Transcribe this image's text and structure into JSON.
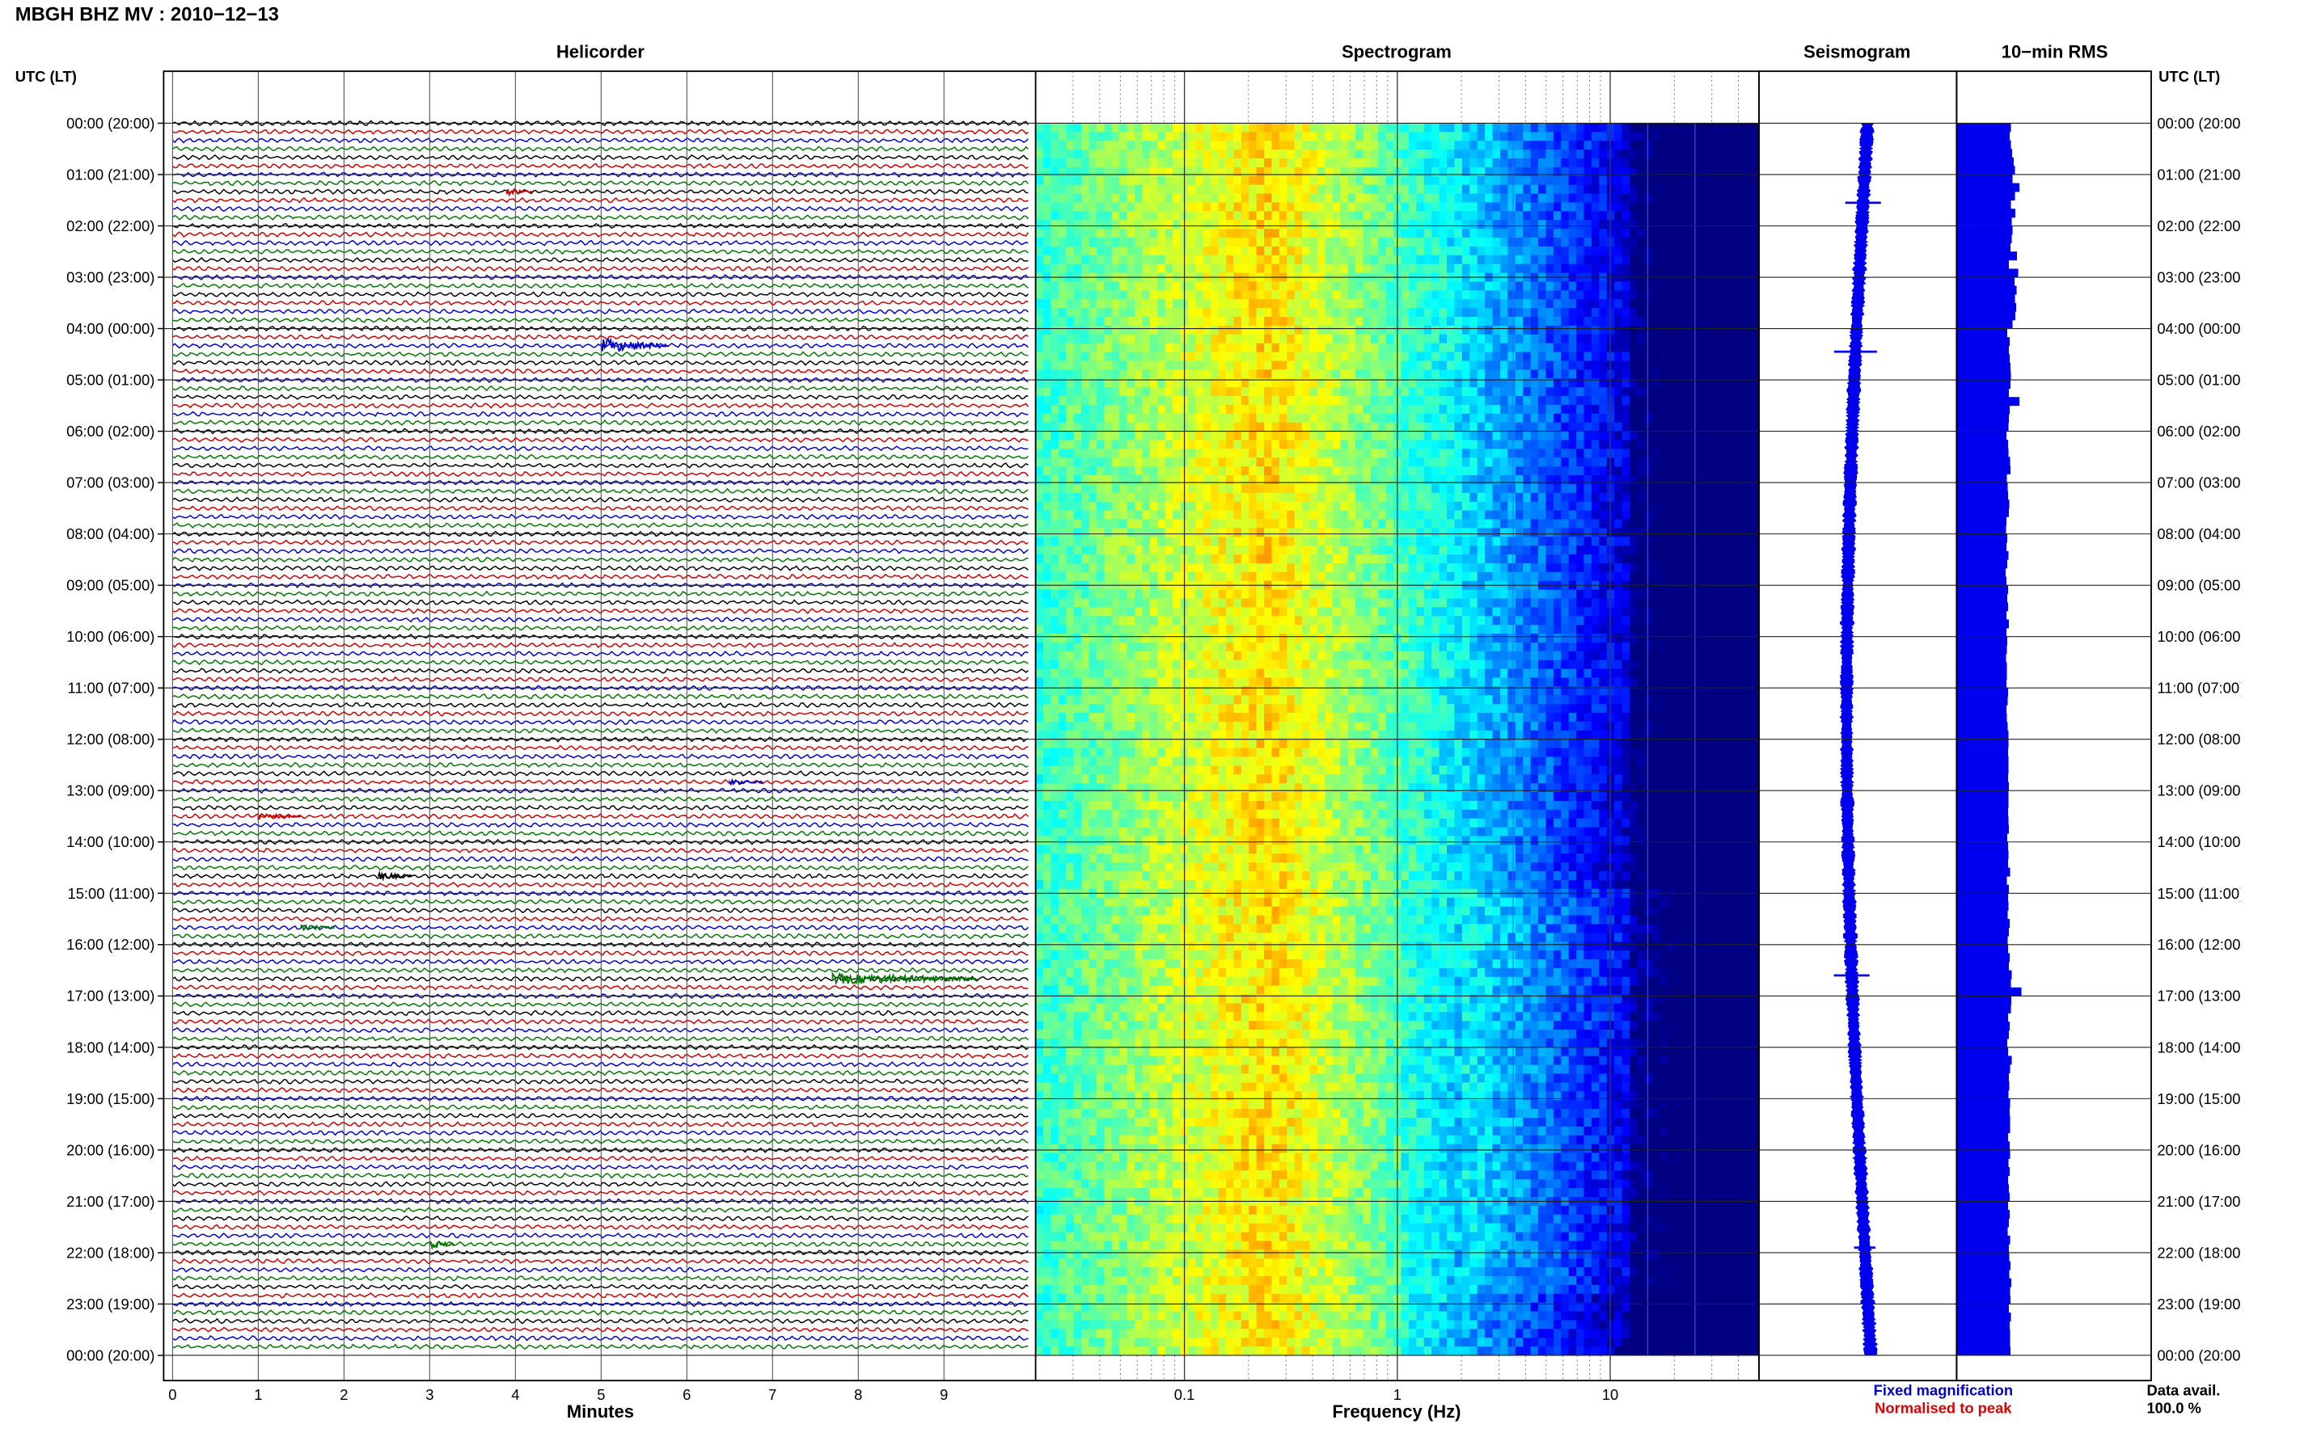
{
  "header": {
    "title": "MBGH BHZ MV : 2010−12−13"
  },
  "panels": {
    "helicorder": {
      "title": "Helicorder"
    },
    "spectrogram": {
      "title": "Spectrogram"
    },
    "seismogram": {
      "title": "Seismogram"
    },
    "rms": {
      "title": "10−min RMS"
    }
  },
  "axes": {
    "left_label": "UTC (LT)",
    "right_label": "UTC (LT)",
    "time_ticks": [
      "00:00 (20:00)",
      "01:00 (21:00)",
      "02:00 (22:00)",
      "03:00 (23:00)",
      "04:00 (00:00)",
      "05:00 (01:00)",
      "06:00 (02:00)",
      "07:00 (03:00)",
      "08:00 (04:00)",
      "09:00 (05:00)",
      "10:00 (06:00)",
      "11:00 (07:00)",
      "12:00 (08:00)",
      "13:00 (09:00)",
      "14:00 (10:00)",
      "15:00 (11:00)",
      "16:00 (12:00)",
      "17:00 (13:00)",
      "18:00 (14:00)",
      "19:00 (15:00)",
      "20:00 (16:00)",
      "21:00 (17:00)",
      "22:00 (18:00)",
      "23:00 (19:00)",
      "00:00 (20:00)"
    ],
    "minutes_ticks": [
      "0",
      "1",
      "2",
      "3",
      "4",
      "5",
      "6",
      "7",
      "8",
      "9"
    ],
    "minutes_label": "Minutes",
    "freq_ticks": [
      "0.1",
      "1",
      "10"
    ],
    "freq_label": "Frequency (Hz)"
  },
  "legend": {
    "fixed": "Fixed magnification",
    "normalised": "Normalised to peak",
    "fixed_color": "#0000cc",
    "normalised_color": "#e00000"
  },
  "data_avail": {
    "label": "Data avail.",
    "value": "100.0 %"
  },
  "colors": {
    "trace_cycle": [
      "#000000",
      "#cc0000",
      "#0000cc",
      "#007700"
    ],
    "rms_bar": "#0000ee",
    "seismogram": "#0000ee"
  },
  "chart_data": [
    {
      "type": "line",
      "name": "helicorder",
      "x_unit": "minutes",
      "xlim": [
        0,
        10
      ],
      "rows_per_hour": 6,
      "hours": 24,
      "events": [
        {
          "row": 8,
          "start_min": 3.9,
          "duration_min": 0.3,
          "amp": 0.5,
          "color": "#cc0000"
        },
        {
          "row": 26,
          "start_min": 5.0,
          "duration_min": 0.8,
          "amp": 1.0,
          "color": "#0000cc"
        },
        {
          "row": 77,
          "start_min": 6.5,
          "duration_min": 0.4,
          "amp": 0.4,
          "color": "#0000cc"
        },
        {
          "row": 81,
          "start_min": 1.0,
          "duration_min": 0.5,
          "amp": 0.4,
          "color": "#cc0000"
        },
        {
          "row": 88,
          "start_min": 2.4,
          "duration_min": 0.4,
          "amp": 0.5,
          "color": "#000000"
        },
        {
          "row": 94,
          "start_min": 1.5,
          "duration_min": 0.4,
          "amp": 0.4,
          "color": "#007700"
        },
        {
          "row": 100,
          "start_min": 7.7,
          "duration_min": 1.7,
          "amp": 0.8,
          "color": "#007700"
        },
        {
          "row": 131,
          "start_min": 3.0,
          "duration_min": 0.3,
          "amp": 0.6,
          "color": "#007700"
        }
      ]
    },
    {
      "type": "heatmap",
      "name": "spectrogram",
      "x_scale": "log",
      "xlim": [
        0.02,
        50
      ],
      "colormap": "jet",
      "peak_frequency_hz": 0.25,
      "lines_hz": [
        3.5,
        10,
        15,
        25
      ]
    },
    {
      "type": "line",
      "name": "seismogram",
      "spikes": [
        {
          "hour": 1.55,
          "amp": 1.0
        },
        {
          "hour": 4.45,
          "amp": 1.2
        },
        {
          "hour": 16.6,
          "amp": 1.0
        },
        {
          "hour": 21.9,
          "amp": 0.6
        }
      ]
    },
    {
      "type": "bar",
      "name": "rms_10min",
      "categories_count": 144,
      "values": [
        1.34,
        1.31,
        1.34,
        1.37,
        1.41,
        1.44,
        1.38,
        1.55,
        1.44,
        1.34,
        1.45,
        1.36,
        1.38,
        1.36,
        1.33,
        1.49,
        1.29,
        1.52,
        1.43,
        1.48,
        1.44,
        1.47,
        1.45,
        1.38,
        1.25,
        1.31,
        1.29,
        1.31,
        1.33,
        1.34,
        1.33,
        1.29,
        1.55,
        1.31,
        1.29,
        1.28,
        1.23,
        1.27,
        1.28,
        1.32,
        1.33,
        1.24,
        1.26,
        1.27,
        1.3,
        1.29,
        1.23,
        1.22,
        1.25,
        1.23,
        1.28,
        1.25,
        1.21,
        1.23,
        1.27,
        1.25,
        1.27,
        1.23,
        1.29,
        1.23,
        1.25,
        1.24,
        1.22,
        1.24,
        1.24,
        1.23,
        1.27,
        1.26,
        1.23,
        1.24,
        1.26,
        1.28,
        1.28,
        1.27,
        1.28,
        1.28,
        1.27,
        1.29,
        1.28,
        1.28,
        1.27,
        1.28,
        1.29,
        1.25,
        1.27,
        1.28,
        1.27,
        1.32,
        1.24,
        1.29,
        1.27,
        1.28,
        1.26,
        1.31,
        1.29,
        1.26,
        1.27,
        1.31,
        1.29,
        1.36,
        1.34,
        1.6,
        1.35,
        1.34,
        1.27,
        1.31,
        1.29,
        1.25,
        1.27,
        1.36,
        1.32,
        1.29,
        1.3,
        1.28,
        1.32,
        1.31,
        1.32,
        1.32,
        1.27,
        1.31,
        1.32,
        1.28,
        1.31,
        1.27,
        1.29,
        1.31,
        1.27,
        1.31,
        1.29,
        1.26,
        1.32,
        1.29,
        1.3,
        1.33,
        1.3,
        1.35,
        1.32,
        1.33,
        1.29,
        1.34,
        1.31,
        1.32,
        1.32,
        1.33
      ]
    }
  ]
}
